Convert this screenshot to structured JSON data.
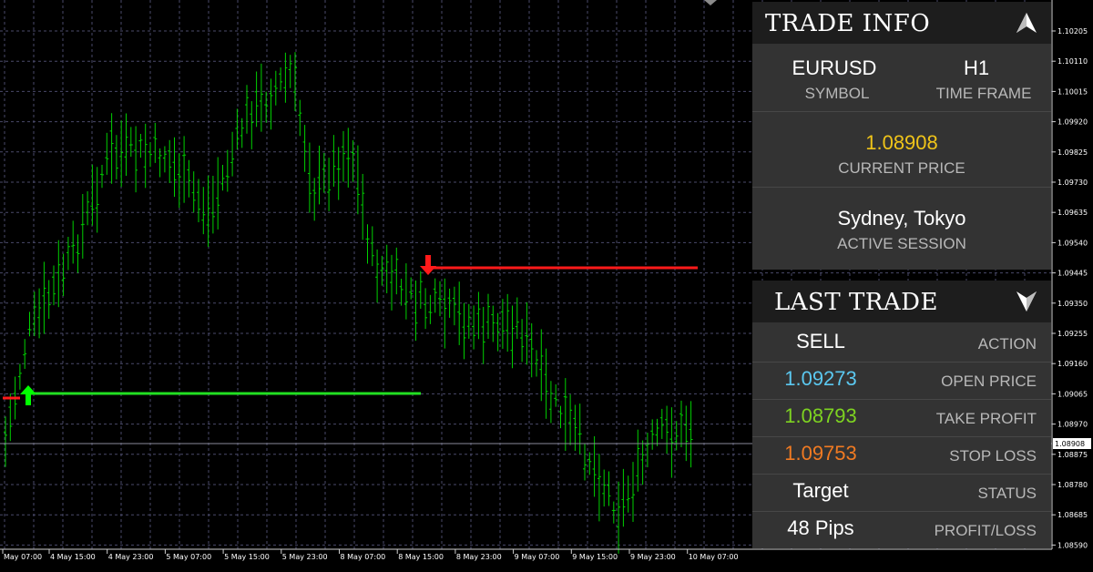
{
  "chart": {
    "price_labels": [
      "1.10205",
      "1.10110",
      "1.10015",
      "1.09920",
      "1.09825",
      "1.09730",
      "1.09635",
      "1.09540",
      "1.09445",
      "1.09350",
      "1.09255",
      "1.09160",
      "1.09065",
      "1.08970",
      "1.08875",
      "1.08780",
      "1.08685",
      "1.08590"
    ],
    "current_price_tag": "1.08908",
    "time_labels": [
      "May 07:00",
      "4 May 15:00",
      "4 May 23:00",
      "5 May 07:00",
      "5 May 15:00",
      "5 May 23:00",
      "8 May 07:00",
      "8 May 15:00",
      "8 May 23:00",
      "9 May 07:00",
      "9 May 15:00",
      "9 May 23:00",
      "10 May 07:00"
    ],
    "colors": {
      "candles": "#00d000",
      "buy_arrow": "#00ff00",
      "sell_arrow": "#ff1a1a",
      "grid": "#4a4a6a"
    }
  },
  "trade_info": {
    "title": "TRADE INFO",
    "icon": "arrow-up-icon",
    "symbol": "EURUSD",
    "symbol_label": "SYMBOL",
    "timeframe": "H1",
    "timeframe_label": "TIME FRAME",
    "current_price": "1.08908",
    "current_price_label": "CURRENT PRICE",
    "session": "Sydney, Tokyo",
    "session_label": "ACTIVE SESSION"
  },
  "last_trade": {
    "title": "LAST TRADE",
    "icon": "arrow-down-icon",
    "rows": [
      {
        "value": "SELL",
        "label": "ACTION",
        "color": "#ffffff"
      },
      {
        "value": "1.09273",
        "label": "OPEN PRICE",
        "color": "#5bc8f0"
      },
      {
        "value": "1.08793",
        "label": "TAKE PROFIT",
        "color": "#7ed321"
      },
      {
        "value": "1.09753",
        "label": "STOP LOSS",
        "color": "#f07a22"
      },
      {
        "value": "Target",
        "label": "STATUS",
        "color": "#ffffff"
      },
      {
        "value": "48 Pips",
        "label": "PROFIT/LOSS",
        "color": "#ffffff"
      }
    ]
  }
}
